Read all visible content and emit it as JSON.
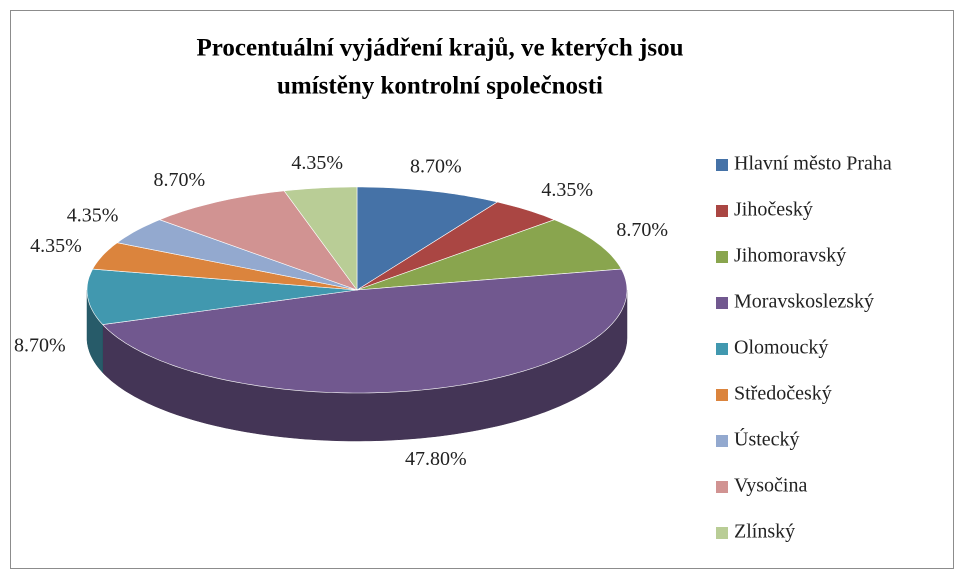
{
  "chart_data": {
    "type": "pie3d",
    "title": [
      "Procentuální vyjádření krajů, ve kterých jsou",
      "umístěny kontrolní společnosti"
    ],
    "categories": [
      "Hlavní město Praha",
      "Jihočeský",
      "Jihomoravský",
      "Moravskoslezský",
      "Olomoucký",
      "Středočeský",
      "Ústecký",
      "Vysočina",
      "Zlínský"
    ],
    "values": [
      8.7,
      4.35,
      8.7,
      47.8,
      8.7,
      4.35,
      4.35,
      8.7,
      4.35
    ],
    "value_labels": [
      "8.70%",
      "4.35%",
      "8.70%",
      "47.80%",
      "8.70%",
      "4.35%",
      "4.35%",
      "8.70%",
      "4.35%"
    ],
    "colors": [
      "#4572a7",
      "#aa4643",
      "#89a54e",
      "#71588f",
      "#4198af",
      "#db843d",
      "#93a9cf",
      "#d19392",
      "#b9cd96"
    ],
    "legend": "right"
  }
}
